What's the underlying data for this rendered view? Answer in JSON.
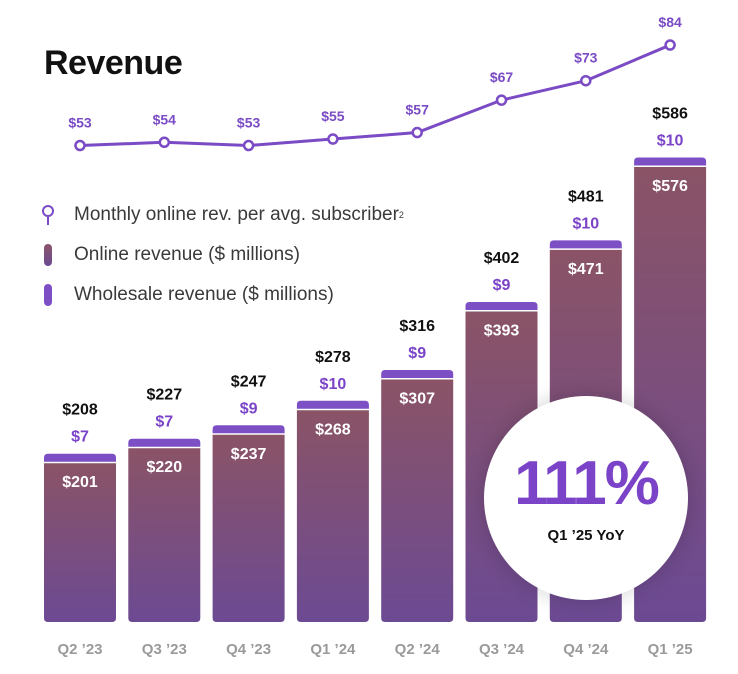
{
  "title": "Revenue",
  "legend": {
    "line_label": "Monthly online rev. per avg. subscriber",
    "line_footnote": "2",
    "online_label": "Online revenue ($ millions)",
    "wholesale_label": "Wholesale revenue ($ millions)"
  },
  "badge": {
    "value": "111%",
    "label": "Q1 ’25 YoY"
  },
  "colors": {
    "online_top": "#8a5366",
    "online_bottom": "#6c4a93",
    "wholesale": "#7d4fc4",
    "line": "#7a4bc4",
    "total_label": "#111111",
    "wholesale_label": "#7a43c8",
    "axis_label": "#9a9a9a"
  },
  "chart_data": {
    "type": "bar",
    "stacked": true,
    "categories": [
      "Q2 ’23",
      "Q3 ’23",
      "Q4 ’23",
      "Q1 ’24",
      "Q2 ’24",
      "Q3 ’24",
      "Q4 ’24",
      "Q1 ’25"
    ],
    "series": [
      {
        "name": "Online revenue ($ millions)",
        "values": [
          201,
          220,
          237,
          268,
          307,
          393,
          471,
          576
        ],
        "labels": [
          "$201",
          "$220",
          "$237",
          "$268",
          "$307",
          "$393",
          "$471",
          "$576"
        ]
      },
      {
        "name": "Wholesale revenue ($ millions)",
        "values": [
          7,
          7,
          9,
          10,
          9,
          9,
          10,
          10
        ],
        "labels": [
          "$7",
          "$7",
          "$9",
          "$10",
          "$9",
          "$9",
          "$10",
          "$10"
        ]
      }
    ],
    "totals": [
      208,
      227,
      247,
      278,
      316,
      402,
      481,
      586
    ],
    "total_labels": [
      "$208",
      "$227",
      "$247",
      "$278",
      "$316",
      "$402",
      "$481",
      "$586"
    ],
    "line": {
      "name": "Monthly online rev. per avg. subscriber",
      "values": [
        53,
        54,
        53,
        55,
        57,
        67,
        73,
        84
      ],
      "labels": [
        "$53",
        "$54",
        "$53",
        "$55",
        "$57",
        "$67",
        "$73",
        "$84"
      ]
    },
    "ylim": [
      0,
      620
    ],
    "grid": false,
    "legend_position": "left"
  }
}
